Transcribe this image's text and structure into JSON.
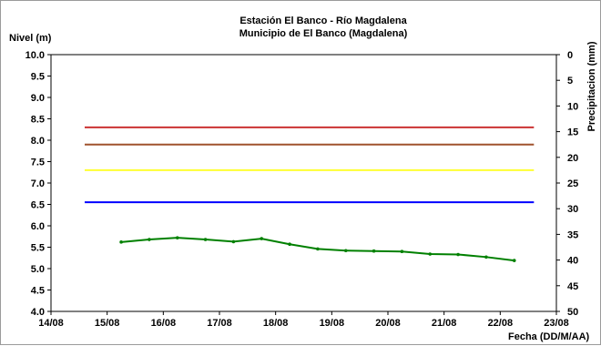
{
  "chart_data": {
    "type": "line",
    "title": "Estación El Banco - Río Magdalena",
    "subtitle": "Municipio de El Banco (Magdalena)",
    "ylabel": "Nivel (m)",
    "y2label": "Precipitacion (mm)",
    "xlabel": "Fecha (DD/M/AA)",
    "ylim": [
      4.0,
      10.0
    ],
    "y_ticks": [
      "10.0",
      "9.5",
      "9.0",
      "8.5",
      "8.0",
      "7.5",
      "7.0",
      "6.5",
      "6.0",
      "5.5",
      "5.0",
      "4.5",
      "4.0"
    ],
    "y2lim": [
      0,
      50
    ],
    "y2_reversed": true,
    "y2_ticks": [
      "0",
      "5",
      "10",
      "15",
      "20",
      "25",
      "30",
      "35",
      "40",
      "45",
      "50"
    ],
    "xlim": [
      0,
      9
    ],
    "x_ticks": [
      "14/08",
      "15/08",
      "16/08",
      "17/08",
      "18/08",
      "19/08",
      "20/08",
      "21/08",
      "22/08",
      "23/08"
    ],
    "thresholds": [
      {
        "y": 8.3,
        "x_start": 0.6,
        "x_end": 8.6,
        "color": "#cc3333"
      },
      {
        "y": 7.9,
        "x_start": 0.6,
        "x_end": 8.6,
        "color": "#a0522d"
      },
      {
        "y": 7.3,
        "x_start": 0.6,
        "x_end": 8.6,
        "color": "#ffff33"
      },
      {
        "y": 6.55,
        "x_start": 0.6,
        "x_end": 8.6,
        "color": "#0000ff"
      }
    ],
    "series": [
      {
        "color": "#008000",
        "x": [
          1.25,
          1.75,
          2.25,
          2.75,
          3.25,
          3.75,
          4.25,
          4.75,
          5.25,
          5.75,
          6.25,
          6.75,
          7.25,
          7.75,
          8.25
        ],
        "y": [
          5.62,
          5.68,
          5.72,
          5.68,
          5.63,
          5.7,
          5.57,
          5.46,
          5.42,
          5.41,
          5.4,
          5.34,
          5.33,
          5.27,
          5.19
        ]
      }
    ],
    "grid": false
  }
}
